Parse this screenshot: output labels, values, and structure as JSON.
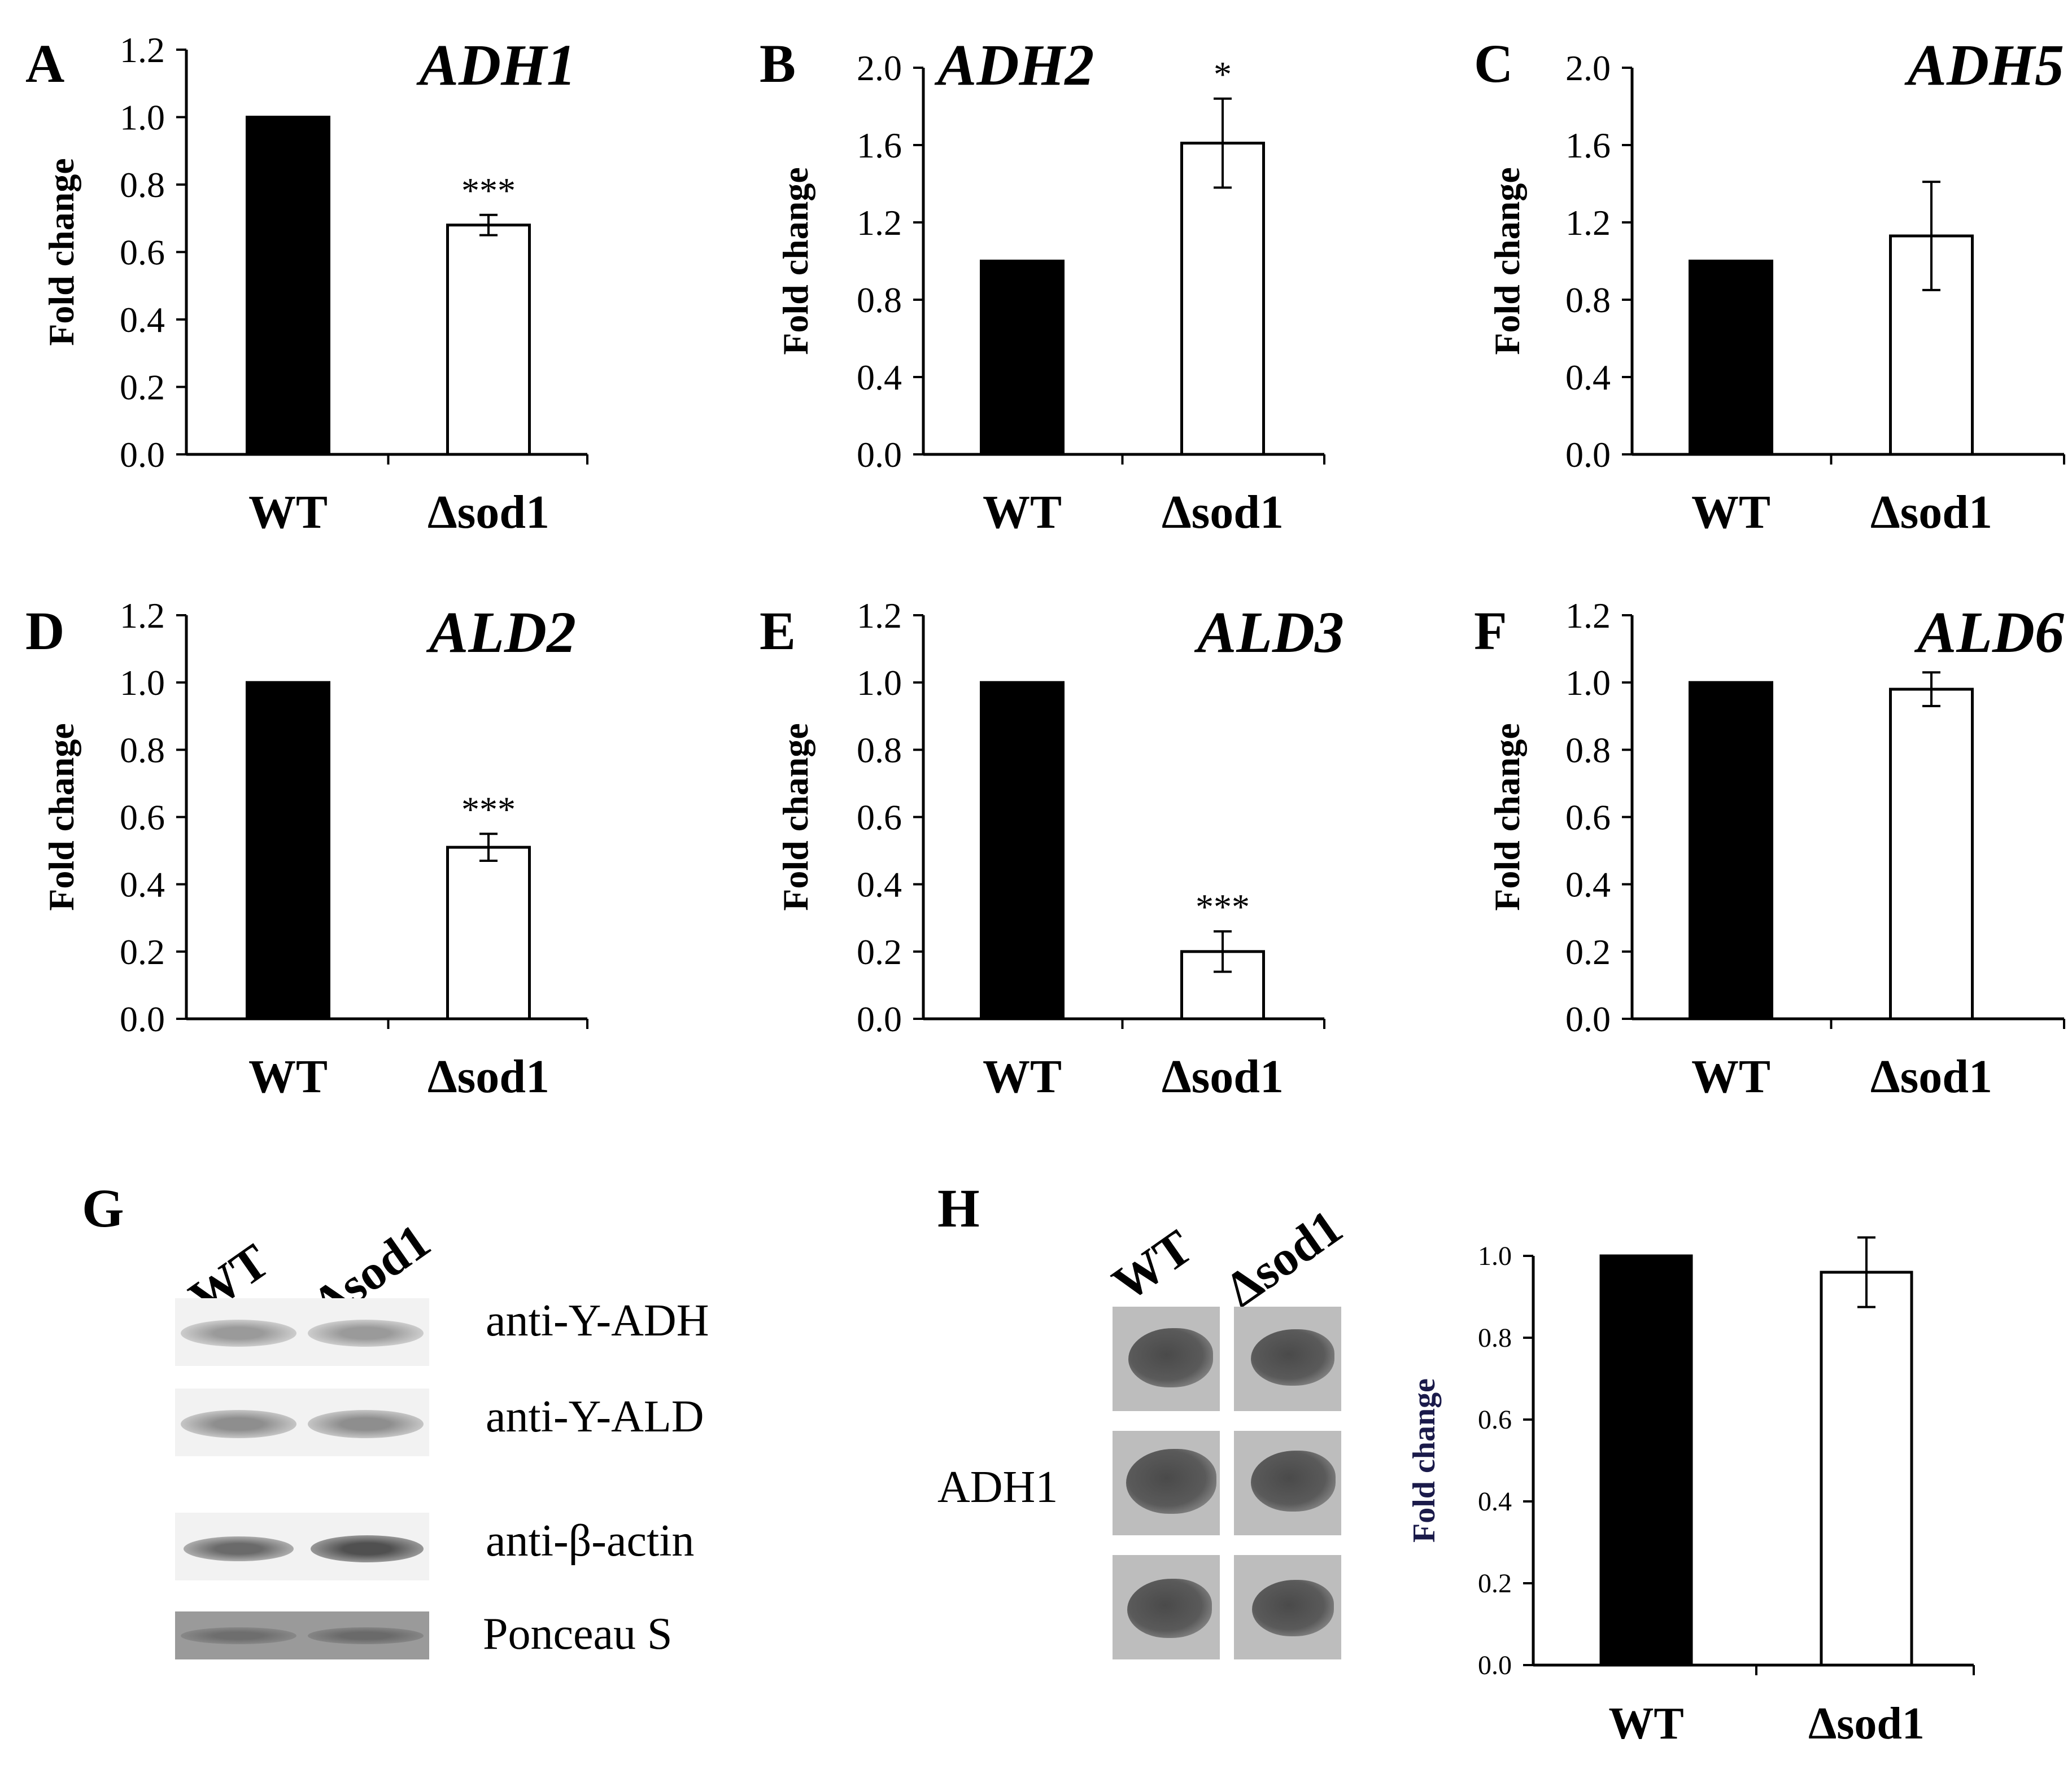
{
  "chart_data": [
    {
      "panel": "A",
      "type": "bar",
      "title": "ADH1",
      "ylabel": "Fold change",
      "categories": [
        "WT",
        "Δsod1"
      ],
      "values": [
        1.0,
        0.68
      ],
      "error": [
        0,
        0.03
      ],
      "significance": [
        "",
        "***"
      ],
      "ylim": [
        0,
        1.2
      ],
      "yticks": [
        "0.0",
        "0.2",
        "0.4",
        "0.6",
        "0.8",
        "1.0",
        "1.2"
      ],
      "colors": [
        "#000000",
        "#ffffff"
      ]
    },
    {
      "panel": "B",
      "type": "bar",
      "title": "ADH2",
      "ylabel": "Fold change",
      "categories": [
        "WT",
        "Δsod1"
      ],
      "values": [
        1.0,
        1.61
      ],
      "error": [
        0,
        0.23
      ],
      "significance": [
        "",
        "*"
      ],
      "ylim": [
        0,
        2.0
      ],
      "yticks": [
        "0.0",
        "0.4",
        "0.8",
        "1.2",
        "1.6",
        "2.0"
      ],
      "colors": [
        "#000000",
        "#ffffff"
      ]
    },
    {
      "panel": "C",
      "type": "bar",
      "title": "ADH5",
      "ylabel": "Fold change",
      "categories": [
        "WT",
        "Δsod1"
      ],
      "values": [
        1.0,
        1.13
      ],
      "error": [
        0,
        0.28
      ],
      "significance": [
        "",
        ""
      ],
      "ylim": [
        0,
        2.0
      ],
      "yticks": [
        "0.0",
        "0.4",
        "0.8",
        "1.2",
        "1.6",
        "2.0"
      ],
      "colors": [
        "#000000",
        "#ffffff"
      ]
    },
    {
      "panel": "D",
      "type": "bar",
      "title": "ALD2",
      "ylabel": "Fold change",
      "categories": [
        "WT",
        "Δsod1"
      ],
      "values": [
        1.0,
        0.51
      ],
      "error": [
        0,
        0.04
      ],
      "significance": [
        "",
        "***"
      ],
      "ylim": [
        0,
        1.2
      ],
      "yticks": [
        "0.0",
        "0.2",
        "0.4",
        "0.6",
        "0.8",
        "1.0",
        "1.2"
      ],
      "colors": [
        "#000000",
        "#ffffff"
      ]
    },
    {
      "panel": "E",
      "type": "bar",
      "title": "ALD3",
      "ylabel": "Fold change",
      "categories": [
        "WT",
        "Δsod1"
      ],
      "values": [
        1.0,
        0.2
      ],
      "error": [
        0,
        0.06
      ],
      "significance": [
        "",
        "***"
      ],
      "ylim": [
        0,
        1.2
      ],
      "yticks": [
        "0.0",
        "0.2",
        "0.4",
        "0.6",
        "0.8",
        "1.0",
        "1.2"
      ],
      "colors": [
        "#000000",
        "#ffffff"
      ]
    },
    {
      "panel": "F",
      "type": "bar",
      "title": "ALD6",
      "ylabel": "Fold change",
      "categories": [
        "WT",
        "Δsod1"
      ],
      "values": [
        1.0,
        0.98
      ],
      "error": [
        0,
        0.05
      ],
      "significance": [
        "",
        ""
      ],
      "ylim": [
        0,
        1.2
      ],
      "yticks": [
        "0.0",
        "0.2",
        "0.4",
        "0.6",
        "0.8",
        "1.0",
        "1.2"
      ],
      "colors": [
        "#000000",
        "#ffffff"
      ]
    },
    {
      "panel": "H",
      "type": "bar",
      "title": "",
      "ylabel": "Fold change",
      "categories": [
        "WT",
        "Δsod1"
      ],
      "values": [
        1.0,
        0.96
      ],
      "error": [
        0,
        0.085
      ],
      "significance": [
        "",
        ""
      ],
      "ylim": [
        0,
        1.0
      ],
      "yticks": [
        "0.0",
        "0.2",
        "0.4",
        "0.6",
        "0.8",
        "1.0"
      ],
      "colors": [
        "#000000",
        "#ffffff"
      ]
    }
  ],
  "blot_g": {
    "letter": "G",
    "lanes": [
      "WT",
      "Δsod1"
    ],
    "rows": [
      "anti-Y-ADH",
      "anti-Y-ALD",
      "anti-β-actin",
      "Ponceau S"
    ]
  },
  "blot_h": {
    "letter": "H",
    "lanes": [
      "WT",
      "Δsod1"
    ],
    "label": "ADH1"
  }
}
